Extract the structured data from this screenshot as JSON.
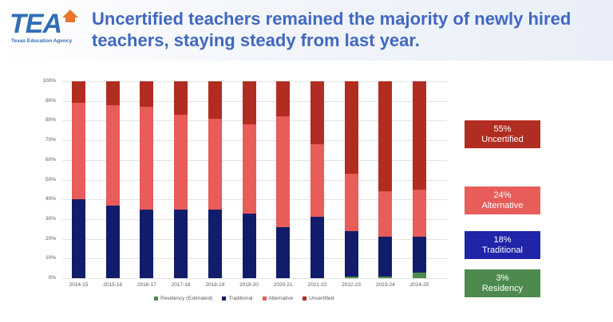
{
  "header": {
    "logo_text": "TEA",
    "logo_subtext": "Texas Education Agency",
    "title": "Uncertified teachers remained the majority of newly hired teachers, staying steady from last year."
  },
  "colors": {
    "residency": "#4e8a4e",
    "traditional": "#111d6b",
    "alternative": "#e85c5a",
    "uncertified": "#b12d21",
    "title": "#4168c0",
    "callout_traditional": "#1f24a8"
  },
  "callouts": [
    {
      "pct": "55%",
      "label": "Uncertified",
      "color": "#b12d21"
    },
    {
      "pct": "24%",
      "label": "Alternative",
      "color": "#e85c5a"
    },
    {
      "pct": "18%",
      "label": "Traditional",
      "color": "#1f24a8"
    },
    {
      "pct": "3%",
      "label": "Residency",
      "color": "#4e8a4e"
    }
  ],
  "chart_data": {
    "type": "bar",
    "stacked": true,
    "title": "",
    "xlabel": "",
    "ylabel": "",
    "ylim": [
      0,
      100
    ],
    "y_ticks": [
      "0%",
      "10%",
      "20%",
      "30%",
      "40%",
      "50%",
      "60%",
      "70%",
      "80%",
      "90%",
      "100%"
    ],
    "grid": true,
    "legend_position": "bottom",
    "categories": [
      "2014-15",
      "2015-16",
      "2016-17",
      "2017-18",
      "2018-19",
      "2019-20",
      "2020-21",
      "2021-22",
      "2022-23",
      "2023-24",
      "2024-25"
    ],
    "series": [
      {
        "name": "Residency (Estimated)",
        "values": [
          0,
          0,
          0,
          0,
          0,
          0,
          0,
          0,
          1,
          1,
          3
        ]
      },
      {
        "name": "Traditional",
        "values": [
          40,
          37,
          35,
          35,
          35,
          33,
          26,
          31,
          23,
          20,
          18
        ]
      },
      {
        "name": "Alternative",
        "values": [
          49,
          51,
          52,
          48,
          46,
          45,
          56,
          37,
          29,
          23,
          24
        ]
      },
      {
        "name": "Uncertified",
        "values": [
          11,
          12,
          13,
          17,
          19,
          22,
          18,
          32,
          47,
          56,
          55
        ]
      }
    ]
  }
}
